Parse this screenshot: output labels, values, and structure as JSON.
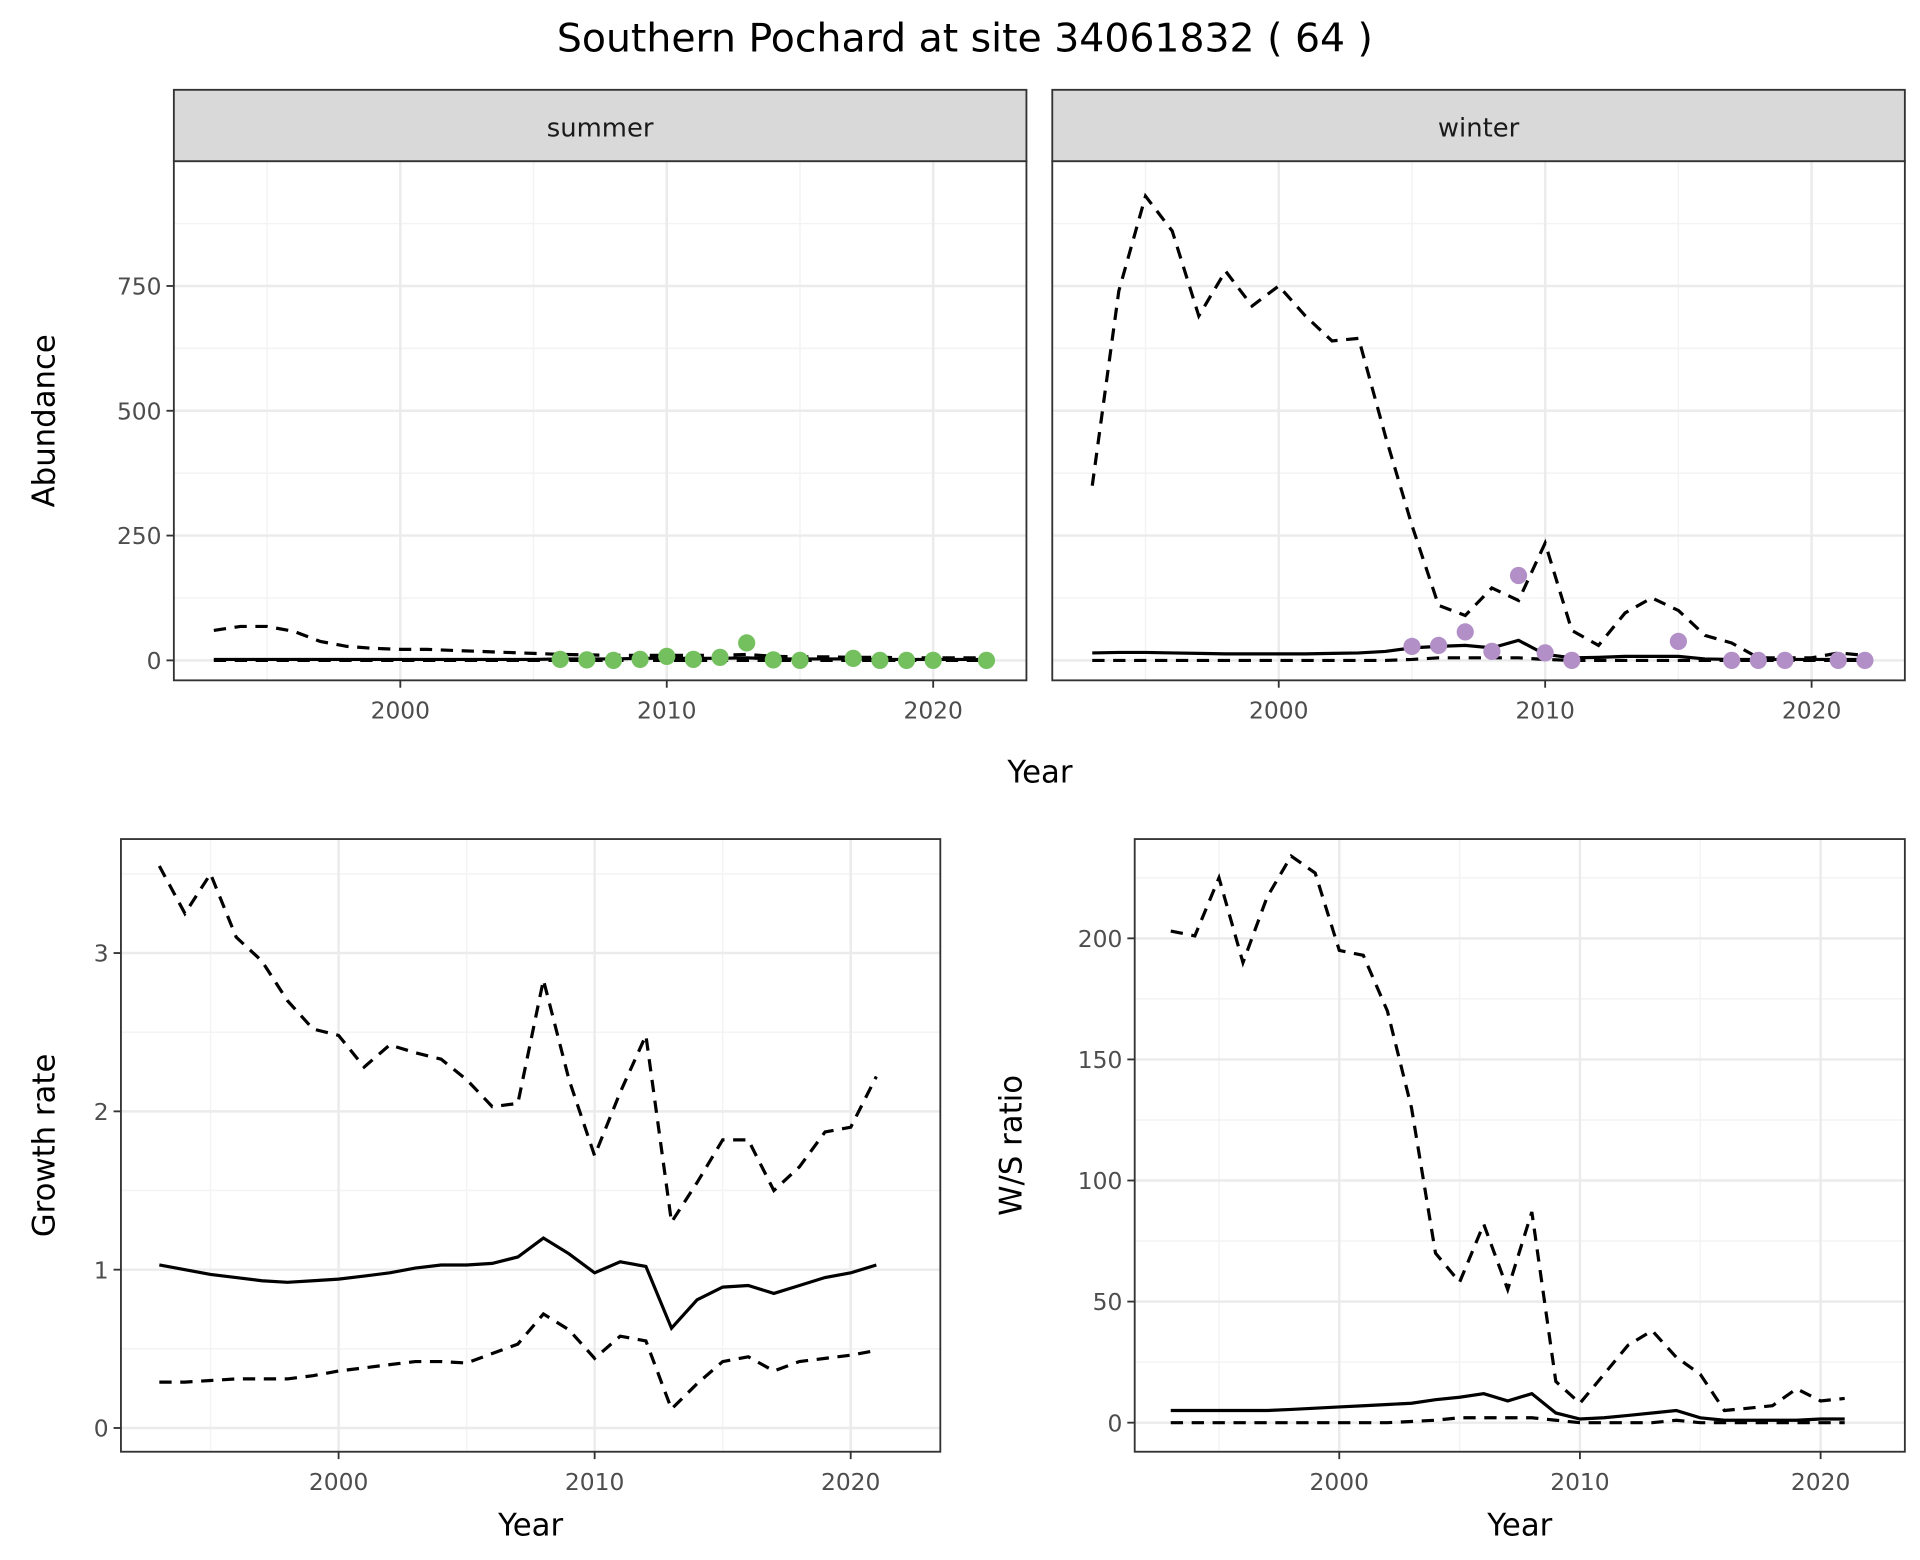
{
  "title": "Southern Pochard at site 34061832 ( 64 )",
  "colors": {
    "summer": "#74c05f",
    "winter": "#b28fc7",
    "line": "#000000"
  },
  "chart_data": [
    {
      "type": "line",
      "facet": "summer",
      "xlabel": "Year",
      "ylabel": "Abundance",
      "xlim": [
        1991.5,
        2023.5
      ],
      "ylim": [
        -40,
        1000
      ],
      "xticks": [
        "2000",
        "2010",
        "2020"
      ],
      "yticks": [
        "0",
        "250",
        "500",
        "750"
      ],
      "years": [
        1993,
        1994,
        1995,
        1996,
        1997,
        1998,
        1999,
        2000,
        2001,
        2002,
        2003,
        2004,
        2005,
        2006,
        2007,
        2008,
        2009,
        2010,
        2011,
        2012,
        2013,
        2014,
        2015,
        2016,
        2017,
        2018,
        2019,
        2020,
        2021,
        2022
      ],
      "mean": [
        2,
        2,
        2,
        2,
        2,
        2,
        2,
        2,
        2,
        2,
        2,
        2,
        2,
        3,
        3,
        3,
        4,
        4,
        4,
        4,
        5,
        3,
        3,
        3,
        3,
        2,
        2,
        2,
        2,
        2
      ],
      "upper": [
        60,
        68,
        68,
        58,
        38,
        28,
        24,
        22,
        22,
        20,
        18,
        16,
        14,
        12,
        11,
        10,
        10,
        10,
        10,
        10,
        12,
        8,
        7,
        7,
        6,
        6,
        5,
        5,
        5,
        5
      ],
      "lower": [
        0,
        0,
        0,
        0,
        0,
        0,
        0,
        0,
        0,
        0,
        0,
        0,
        0,
        0,
        0,
        0,
        0,
        0,
        0,
        0,
        0,
        0,
        0,
        0,
        0,
        0,
        0,
        0,
        0,
        0
      ],
      "points": {
        "years": [
          2006,
          2007,
          2008,
          2009,
          2010,
          2011,
          2012,
          2013,
          2014,
          2015,
          2017,
          2018,
          2019,
          2020,
          2022
        ],
        "values": [
          2,
          1,
          0,
          2,
          8,
          2,
          6,
          35,
          1,
          0,
          4,
          0,
          0,
          0,
          0
        ]
      }
    },
    {
      "type": "line",
      "facet": "winter",
      "xlabel": "Year",
      "ylabel": "Abundance",
      "xlim": [
        1991.5,
        2023.5
      ],
      "ylim": [
        -40,
        1000
      ],
      "xticks": [
        "2000",
        "2010",
        "2020"
      ],
      "yticks": [
        "0",
        "250",
        "500",
        "750"
      ],
      "years": [
        1993,
        1994,
        1995,
        1996,
        1997,
        1998,
        1999,
        2000,
        2001,
        2002,
        2003,
        2004,
        2005,
        2006,
        2007,
        2008,
        2009,
        2010,
        2011,
        2012,
        2013,
        2014,
        2015,
        2016,
        2017,
        2018,
        2019,
        2020,
        2021,
        2022
      ],
      "mean": [
        15,
        16,
        16,
        15,
        14,
        13,
        13,
        13,
        13,
        14,
        15,
        18,
        25,
        28,
        30,
        25,
        40,
        12,
        5,
        6,
        8,
        8,
        8,
        3,
        2,
        2,
        2,
        2,
        2,
        2
      ],
      "upper": [
        350,
        740,
        930,
        860,
        690,
        780,
        710,
        750,
        690,
        640,
        645,
        450,
        270,
        110,
        90,
        145,
        120,
        235,
        60,
        30,
        95,
        125,
        100,
        50,
        35,
        5,
        5,
        5,
        15,
        10
      ],
      "lower": [
        0,
        0,
        0,
        0,
        0,
        0,
        0,
        0,
        0,
        0,
        0,
        0,
        2,
        5,
        5,
        5,
        5,
        2,
        0,
        0,
        0,
        0,
        0,
        0,
        0,
        0,
        0,
        0,
        0,
        0
      ],
      "points": {
        "years": [
          2005,
          2006,
          2007,
          2008,
          2009,
          2010,
          2011,
          2015,
          2017,
          2018,
          2019,
          2021,
          2022
        ],
        "values": [
          28,
          30,
          57,
          18,
          170,
          15,
          0,
          38,
          0,
          0,
          0,
          0,
          0
        ]
      }
    },
    {
      "type": "line",
      "name": "growth",
      "xlabel": "Year",
      "ylabel": "Growth rate",
      "xlim": [
        1991.5,
        2023.5
      ],
      "ylim": [
        -0.15,
        3.72
      ],
      "xticks": [
        "2000",
        "2010",
        "2020"
      ],
      "yticks": [
        "0",
        "1",
        "2",
        "3"
      ],
      "years": [
        1993,
        1994,
        1995,
        1996,
        1997,
        1998,
        1999,
        2000,
        2001,
        2002,
        2003,
        2004,
        2005,
        2006,
        2007,
        2008,
        2009,
        2010,
        2011,
        2012,
        2013,
        2014,
        2015,
        2016,
        2017,
        2018,
        2019,
        2020,
        2021
      ],
      "mean": [
        1.03,
        1.0,
        0.97,
        0.95,
        0.93,
        0.92,
        0.93,
        0.94,
        0.96,
        0.98,
        1.01,
        1.03,
        1.03,
        1.04,
        1.08,
        1.2,
        1.1,
        0.98,
        1.05,
        1.02,
        0.63,
        0.81,
        0.89,
        0.9,
        0.85,
        0.9,
        0.95,
        0.98,
        1.03
      ],
      "upper": [
        3.55,
        3.25,
        3.5,
        3.1,
        2.95,
        2.7,
        2.52,
        2.48,
        2.28,
        2.42,
        2.37,
        2.33,
        2.2,
        2.03,
        2.05,
        2.83,
        2.2,
        1.72,
        2.12,
        2.48,
        1.3,
        1.55,
        1.82,
        1.82,
        1.5,
        1.65,
        1.87,
        1.9,
        2.22
      ],
      "lower": [
        0.29,
        0.29,
        0.3,
        0.31,
        0.31,
        0.31,
        0.33,
        0.36,
        0.38,
        0.4,
        0.42,
        0.42,
        0.41,
        0.47,
        0.53,
        0.72,
        0.62,
        0.44,
        0.58,
        0.55,
        0.12,
        0.28,
        0.42,
        0.45,
        0.36,
        0.42,
        0.44,
        0.46,
        0.49
      ]
    },
    {
      "type": "line",
      "name": "ratio",
      "xlabel": "Year",
      "ylabel": "W/S ratio",
      "xlim": [
        1991.5,
        2023.5
      ],
      "ylim": [
        -12,
        241
      ],
      "xticks": [
        "2000",
        "2010",
        "2020"
      ],
      "yticks": [
        "0",
        "50",
        "100",
        "150",
        "200"
      ],
      "years": [
        1993,
        1994,
        1995,
        1996,
        1997,
        1998,
        1999,
        2000,
        2001,
        2002,
        2003,
        2004,
        2005,
        2006,
        2007,
        2008,
        2009,
        2010,
        2011,
        2012,
        2013,
        2014,
        2015,
        2016,
        2017,
        2018,
        2019,
        2020,
        2021
      ],
      "mean": [
        5,
        5,
        5,
        5,
        5,
        5.5,
        6,
        6.5,
        7,
        7.5,
        8,
        9.5,
        10.5,
        12,
        9,
        12,
        4,
        1.5,
        2,
        3,
        4,
        5,
        2,
        1,
        1,
        1,
        1,
        1.5,
        1.5
      ],
      "upper": [
        203,
        201,
        225,
        190,
        217,
        234,
        227,
        195,
        193,
        170,
        130,
        70,
        58,
        82,
        55,
        87,
        17,
        8,
        20,
        32,
        38,
        27,
        20,
        5,
        6,
        7,
        14,
        9,
        10
      ],
      "lower": [
        0,
        0,
        0,
        0,
        0,
        0,
        0,
        0,
        0,
        0,
        0.5,
        1,
        2,
        2,
        2,
        2,
        1,
        0,
        0,
        0,
        0,
        1,
        0,
        0,
        0,
        0,
        0,
        0,
        0
      ]
    }
  ]
}
